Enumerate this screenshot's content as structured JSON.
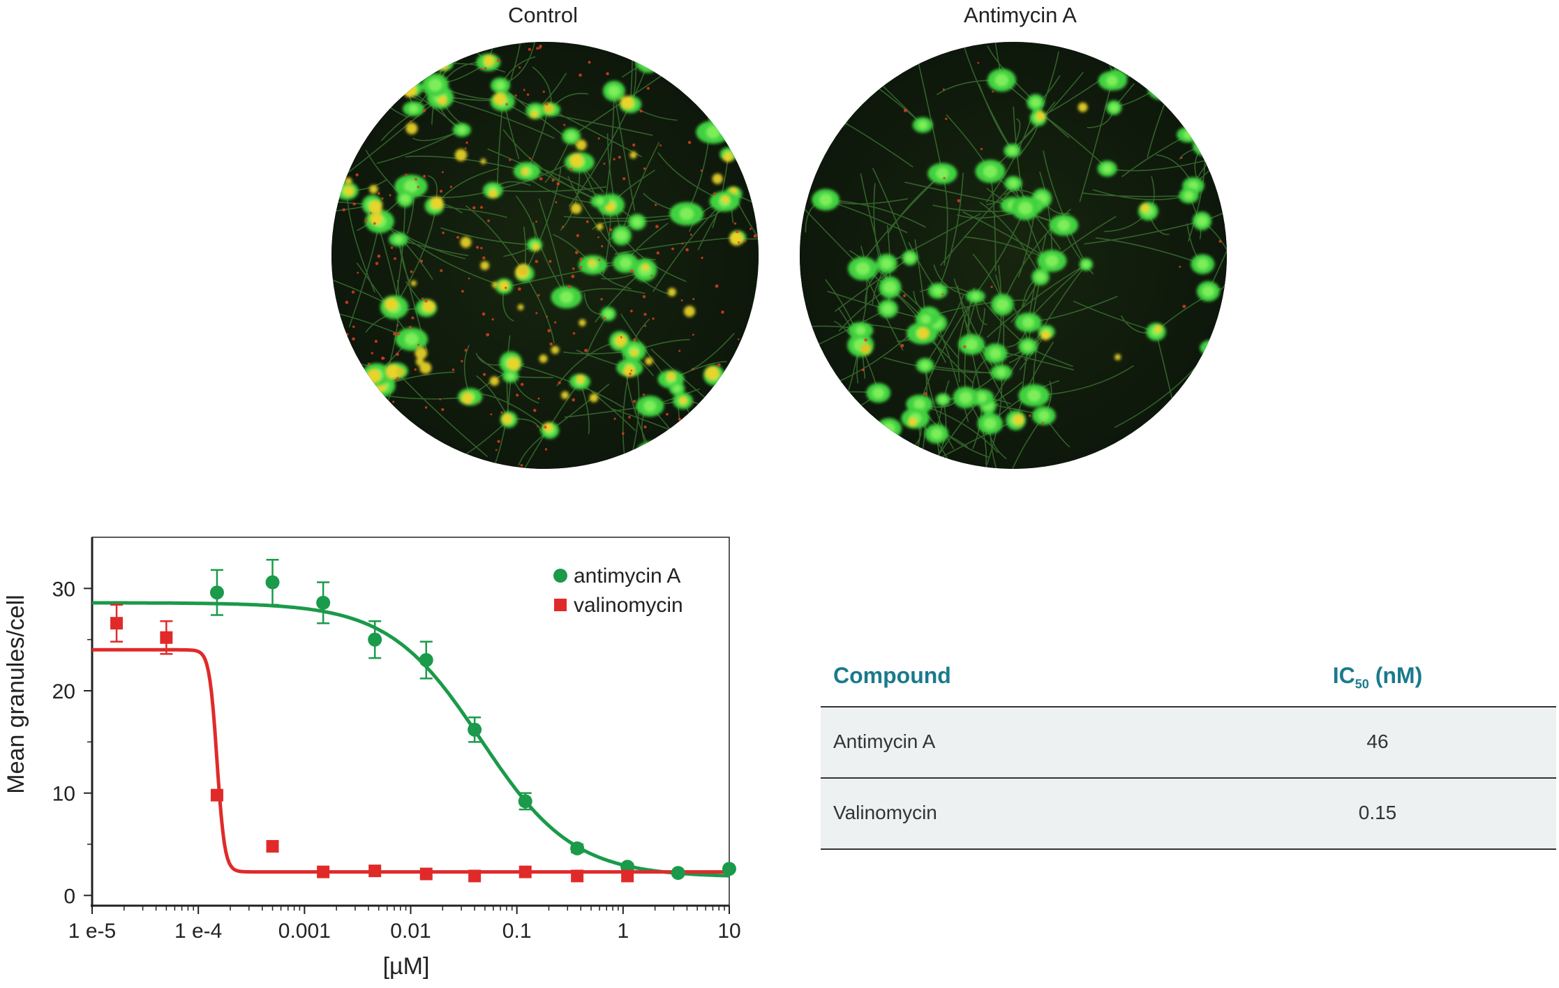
{
  "images": [
    {
      "title": "Control"
    },
    {
      "title": "Antimycin A"
    }
  ],
  "colors": {
    "green_series": "#1a9a4a",
    "red_series": "#e02a2a",
    "header_text": "#1a7a8c",
    "row_bg": "#eef1f1"
  },
  "chart_data": {
    "type": "scatter",
    "xscale": "log",
    "xlabel": "[µM]",
    "ylabel": "Mean granules/cell",
    "xlim": [
      1e-05,
      10
    ],
    "ylim": [
      -1,
      35
    ],
    "x_tick_labels": [
      "1 e-5",
      "1 e-4",
      "0.001",
      "0.01",
      "0.1",
      "1",
      "10"
    ],
    "x_ticks": [
      1e-05,
      0.0001,
      0.001,
      0.01,
      0.1,
      1,
      10
    ],
    "y_ticks": [
      0,
      10,
      20,
      30
    ],
    "y_tick_labels": [
      "0",
      "10",
      "20",
      "30"
    ],
    "legend_position": "top-right",
    "series": [
      {
        "name": "antimycin A",
        "color": "#1a9a4a",
        "marker": "circle",
        "x": [
          0.00015,
          0.0005,
          0.0015,
          0.0046,
          0.014,
          0.04,
          0.12,
          0.37,
          1.1,
          3.3,
          10
        ],
        "y": [
          29.6,
          30.6,
          28.6,
          25.0,
          23.0,
          16.2,
          9.2,
          4.6,
          2.8,
          2.2,
          2.6
        ],
        "err": [
          2.2,
          2.2,
          2.0,
          1.8,
          1.8,
          1.2,
          0.8,
          0.4,
          0.3,
          0.2,
          0.2
        ],
        "fit": {
          "top": 28.6,
          "bottom": 1.8,
          "ic50": 0.046,
          "hill": 1.0
        }
      },
      {
        "name": "valinomycin",
        "color": "#e02a2a",
        "marker": "square",
        "x": [
          1.7e-05,
          5e-05,
          0.00015,
          0.0005,
          0.0015,
          0.0046,
          0.014,
          0.04,
          0.12,
          0.37,
          1.1
        ],
        "y": [
          26.6,
          25.2,
          9.8,
          4.8,
          2.3,
          2.4,
          2.1,
          1.9,
          2.3,
          1.9,
          1.9
        ],
        "err": [
          1.8,
          1.6,
          0,
          0,
          0,
          0,
          0,
          0,
          0,
          0,
          0
        ],
        "fit": {
          "top": 24.0,
          "bottom": 2.3,
          "ic50": 0.00015,
          "hill": 12
        }
      }
    ]
  },
  "table": {
    "header_compound": "Compound",
    "header_ic": "IC",
    "header_ic_sub": "50",
    "header_ic_unit": " (nM)",
    "rows": [
      {
        "compound": "Antimycin A",
        "ic50": "46"
      },
      {
        "compound": "Valinomycin",
        "ic50": "0.15"
      }
    ]
  }
}
